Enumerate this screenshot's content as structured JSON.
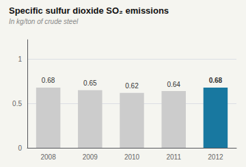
{
  "chart_data": {
    "type": "bar",
    "title": "Specific sulfur dioxide SO₂ emissions",
    "subtitle": "In kg/ton of crude steel",
    "categories": [
      "2008",
      "2009",
      "2010",
      "2011",
      "2012"
    ],
    "values": [
      0.68,
      0.65,
      0.62,
      0.64,
      0.68
    ],
    "colors": [
      "#cccccc",
      "#cccccc",
      "#cccccc",
      "#cccccc",
      "#1878a0"
    ],
    "ylim": [
      0,
      1.22
    ],
    "yticks": [
      0,
      0.5,
      1
    ],
    "grid": true,
    "data_labels": true
  }
}
